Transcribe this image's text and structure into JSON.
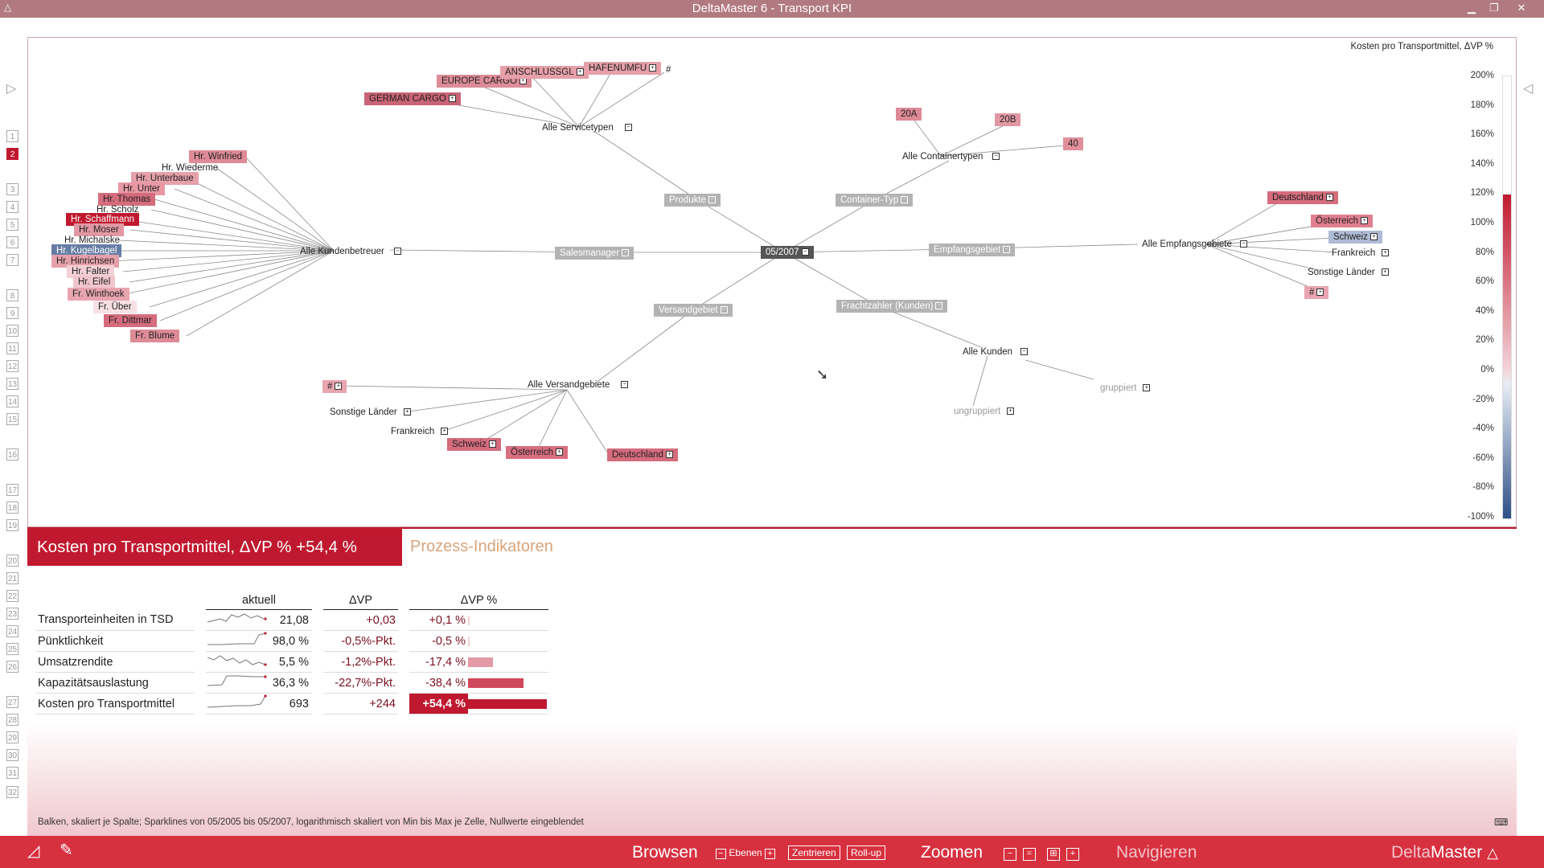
{
  "window": {
    "title": "DeltaMaster 6 - Transport KPI",
    "minimize": "▁",
    "restore": "❐",
    "close": "✕"
  },
  "nav_numbers": [
    "1",
    "2",
    "3",
    "4",
    "5",
    "6",
    "7",
    "8",
    "9",
    "10",
    "11",
    "12",
    "13",
    "14",
    "15",
    "16",
    "17",
    "18",
    "19",
    "20",
    "21",
    "22",
    "23",
    "24",
    "25",
    "26",
    "27",
    "28",
    "29",
    "30",
    "31",
    "32"
  ],
  "map": {
    "center": "05/2007",
    "hubs": {
      "produkte": "Produkte",
      "container_typ": "Container-Typ",
      "salesmanager": "Salesmanager",
      "empfangsgebiet": "Empfangsgebiet",
      "versandgebiet": "Versandgebiet",
      "frachtzahler": "Frachtzahler (Kunden)"
    },
    "groups": {
      "servicetypen": "Alle Servicetypen",
      "containertypen": "Alle Containertypen",
      "kundenbetreuer": "Alle Kundenbetreuer",
      "empfangsgebiete": "Alle Empfangsgebiete",
      "versandgebiete": "Alle Versandgebiete",
      "kunden": "Alle Kunden"
    },
    "service": [
      "GERMAN CARGO",
      "EUROPE CARGO",
      "ANSCHLUSSGL",
      "HAFENUMFU",
      "#"
    ],
    "containers": [
      "20A",
      "20B",
      "40"
    ],
    "managers": [
      "Hr. Winfried",
      "Hr. Wiederme",
      "Hr. Unterbaue",
      "Hr. Unter",
      "Hr. Thomas",
      "Hr. Scholz",
      "Hr. Schaffmann",
      "Hr. Moser",
      "Hr. Michalske",
      "Hr. Kugelbagel",
      "Hr. Hinrichsen",
      "Hr. Falter",
      "Hr. Eifel",
      "Fr. Winthoek",
      "Fr. Über",
      "Fr. Dittmar",
      "Fr. Blume"
    ],
    "receive": [
      "Deutschland",
      "Österreich",
      "Schweiz",
      "Frankreich",
      "Sonstige Länder",
      "#"
    ],
    "ship": [
      "#",
      "Sonstige Länder",
      "Frankreich",
      "Schweiz",
      "Österreich",
      "Deutschland"
    ],
    "customers": [
      "ungruppiert",
      "gruppiert"
    ]
  },
  "legend": {
    "title": "Kosten pro Transportmittel, ΔVP %",
    "ticks": [
      "200%",
      "180%",
      "160%",
      "140%",
      "120%",
      "100%",
      "80%",
      "60%",
      "40%",
      "20%",
      "0%",
      "-20%",
      "-40%",
      "-60%",
      "-80%",
      "-100%"
    ],
    "level_pct": 54.4,
    "colors": {
      "high": "#c0192f",
      "low": "#2e4f86"
    }
  },
  "panel": {
    "kpi_tab": "Kosten pro Transportmittel, ΔVP % +54,4 %",
    "process_tab": "Prozess-Indikatoren"
  },
  "table": {
    "headers": [
      "aktuell",
      "ΔVP",
      "ΔVP %"
    ],
    "rows": [
      {
        "label": "Transporteinheiten in TSD",
        "aktuell": "21,08",
        "dvp": "+0,03",
        "dvp_pct": "+0,1 %",
        "bar": 0.1
      },
      {
        "label": "Pünktlichkeit",
        "aktuell": "98,0 %",
        "dvp": "-0,5%-Pkt.",
        "dvp_pct": "-0,5 %",
        "bar": 0.5
      },
      {
        "label": "Umsatzrendite",
        "aktuell": "5,5 %",
        "dvp": "-1,2%-Pkt.",
        "dvp_pct": "-17,4 %",
        "bar": 17.4
      },
      {
        "label": "Kapazitätsauslastung",
        "aktuell": "36,3 %",
        "dvp": "-22,7%-Pkt.",
        "dvp_pct": "-38,4 %",
        "bar": 38.4
      },
      {
        "label": "Kosten pro Transportmittel",
        "aktuell": "693",
        "dvp": "+244",
        "dvp_pct": "+54,4 %",
        "bar": 54.4
      }
    ]
  },
  "footnote": "Balken, skaliert je Spalte; Sparklines von 05/2005 bis 05/2007, logarithmisch skaliert von Min bis Max je Zelle, Nullwerte eingeblendet",
  "statusbar": {
    "browsen": "Browsen",
    "ebenen": "Ebenen",
    "zentrieren": "Zentrieren",
    "rollup": "Roll-up",
    "zoomen": "Zoomen",
    "navigieren": "Navigieren",
    "brand_delta": "Delta",
    "brand_master": "Master"
  }
}
